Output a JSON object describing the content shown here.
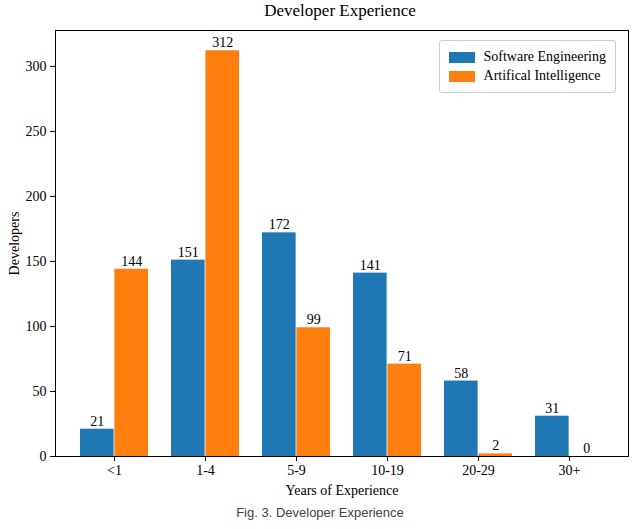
{
  "chart_data": {
    "type": "bar",
    "title": "Developer Experience",
    "caption": "Fig. 3. Developer Experience",
    "x_label": "Years of Experience",
    "y_label": "Developers",
    "categories": [
      "<1",
      "1-4",
      "5-9",
      "10-19",
      "20-29",
      "30+"
    ],
    "series": [
      {
        "name": "Software Engineering",
        "color": "#1f77b4",
        "values": [
          21,
          151,
          172,
          141,
          58,
          31
        ]
      },
      {
        "name": "Artifical Intelligence",
        "color": "#ff7f0e",
        "values": [
          144,
          312,
          99,
          71,
          2,
          0
        ]
      }
    ],
    "ylim": [
      0,
      327.6
    ],
    "yticks": [
      0,
      50,
      100,
      150,
      200,
      250,
      300
    ],
    "grid": false,
    "legend": "upper right",
    "data_labels": true
  }
}
